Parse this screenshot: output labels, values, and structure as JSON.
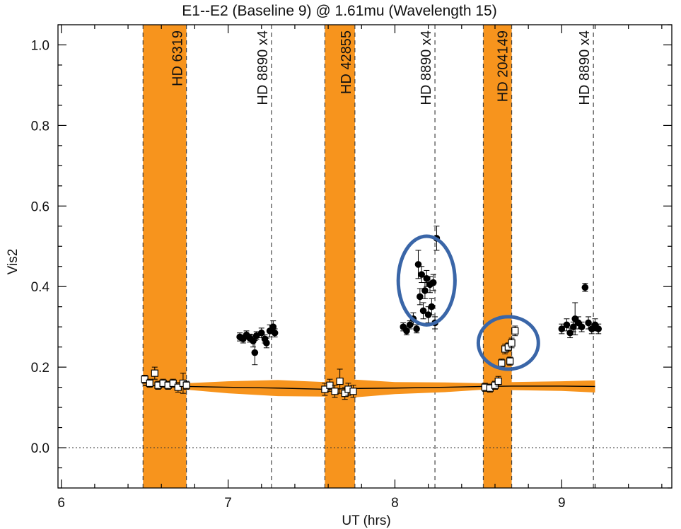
{
  "chart_data": {
    "type": "scatter",
    "title": "E1--E2 (Baseline 9) @ 1.61mu (Wavelength 15)",
    "xlabel": "UT (hrs)",
    "ylabel": "Vis2",
    "xlim": [
      5.98,
      9.66
    ],
    "ylim": [
      -0.1,
      1.05
    ],
    "x_ticks": [
      6,
      7,
      8,
      9
    ],
    "y_ticks": [
      0.0,
      0.2,
      0.4,
      0.6,
      0.8,
      1.0
    ],
    "x_tick_labels": [
      "6",
      "7",
      "8",
      "9"
    ],
    "y_tick_labels": [
      "0.0",
      "0.2",
      "0.4",
      "0.6",
      "0.8",
      "1.0"
    ],
    "zero_line": 0.0,
    "calibrator_bands": [
      {
        "start": 6.49,
        "end": 6.75,
        "color": "#F7941D",
        "label": "HD 6319"
      },
      {
        "start": 7.58,
        "end": 7.76,
        "color": "#F7941D",
        "label": "HD 42855"
      },
      {
        "start": 8.53,
        "end": 8.7,
        "color": "#F7941D",
        "label": "HD 204149"
      }
    ],
    "target_markers": [
      {
        "x": 7.26,
        "label": "HD 8890 x4"
      },
      {
        "x": 8.24,
        "label": "HD 8890 x4"
      },
      {
        "x": 9.19,
        "label": "HD 8890 x4"
      }
    ],
    "series": [
      {
        "marker": "filled-circle",
        "points": [
          {
            "x": 7.07,
            "y": 0.275,
            "err": 0.01
          },
          {
            "x": 7.09,
            "y": 0.27,
            "err": 0.01
          },
          {
            "x": 7.11,
            "y": 0.28,
            "err": 0.01
          },
          {
            "x": 7.13,
            "y": 0.272,
            "err": 0.01
          },
          {
            "x": 7.15,
            "y": 0.265,
            "err": 0.015
          },
          {
            "x": 7.17,
            "y": 0.278,
            "err": 0.01
          },
          {
            "x": 7.16,
            "y": 0.236,
            "err": 0.03
          },
          {
            "x": 7.2,
            "y": 0.285,
            "err": 0.012
          },
          {
            "x": 7.22,
            "y": 0.27,
            "err": 0.01
          },
          {
            "x": 7.23,
            "y": 0.26,
            "err": 0.012
          },
          {
            "x": 7.25,
            "y": 0.29,
            "err": 0.015
          },
          {
            "x": 7.27,
            "y": 0.3,
            "err": 0.015
          },
          {
            "x": 7.28,
            "y": 0.285,
            "err": 0.01
          },
          {
            "x": 8.05,
            "y": 0.3,
            "err": 0.01
          },
          {
            "x": 8.07,
            "y": 0.29,
            "err": 0.01
          },
          {
            "x": 8.09,
            "y": 0.305,
            "err": 0.01
          },
          {
            "x": 8.11,
            "y": 0.32,
            "err": 0.015
          },
          {
            "x": 8.13,
            "y": 0.295,
            "err": 0.01
          },
          {
            "x": 8.14,
            "y": 0.455,
            "err": 0.035
          },
          {
            "x": 8.15,
            "y": 0.375,
            "err": 0.02
          },
          {
            "x": 8.16,
            "y": 0.43,
            "err": 0.02
          },
          {
            "x": 8.17,
            "y": 0.34,
            "err": 0.02
          },
          {
            "x": 8.18,
            "y": 0.39,
            "err": 0.02
          },
          {
            "x": 8.19,
            "y": 0.42,
            "err": 0.02
          },
          {
            "x": 8.2,
            "y": 0.33,
            "err": 0.02
          },
          {
            "x": 8.21,
            "y": 0.405,
            "err": 0.02
          },
          {
            "x": 8.22,
            "y": 0.35,
            "err": 0.02
          },
          {
            "x": 8.23,
            "y": 0.41,
            "err": 0.02
          },
          {
            "x": 8.24,
            "y": 0.31,
            "err": 0.015
          },
          {
            "x": 8.25,
            "y": 0.52,
            "err": 0.03
          },
          {
            "x": 9.0,
            "y": 0.295,
            "err": 0.012
          },
          {
            "x": 9.03,
            "y": 0.305,
            "err": 0.015
          },
          {
            "x": 9.05,
            "y": 0.285,
            "err": 0.012
          },
          {
            "x": 9.07,
            "y": 0.3,
            "err": 0.012
          },
          {
            "x": 9.08,
            "y": 0.32,
            "err": 0.04
          },
          {
            "x": 9.1,
            "y": 0.31,
            "err": 0.015
          },
          {
            "x": 9.12,
            "y": 0.3,
            "err": 0.012
          },
          {
            "x": 9.14,
            "y": 0.398,
            "err": 0.01
          },
          {
            "x": 9.16,
            "y": 0.31,
            "err": 0.015
          },
          {
            "x": 9.18,
            "y": 0.295,
            "err": 0.012
          },
          {
            "x": 9.2,
            "y": 0.305,
            "err": 0.015
          },
          {
            "x": 9.22,
            "y": 0.295,
            "err": 0.012
          }
        ]
      },
      {
        "marker": "open-square",
        "points": [
          {
            "x": 6.5,
            "y": 0.17,
            "err": 0.01
          },
          {
            "x": 6.53,
            "y": 0.16,
            "err": 0.01
          },
          {
            "x": 6.56,
            "y": 0.185,
            "err": 0.015
          },
          {
            "x": 6.58,
            "y": 0.155,
            "err": 0.01
          },
          {
            "x": 6.61,
            "y": 0.16,
            "err": 0.01
          },
          {
            "x": 6.64,
            "y": 0.155,
            "err": 0.01
          },
          {
            "x": 6.67,
            "y": 0.16,
            "err": 0.01
          },
          {
            "x": 6.7,
            "y": 0.15,
            "err": 0.012
          },
          {
            "x": 6.73,
            "y": 0.16,
            "err": 0.025
          },
          {
            "x": 6.75,
            "y": 0.155,
            "err": 0.01
          },
          {
            "x": 7.58,
            "y": 0.145,
            "err": 0.015
          },
          {
            "x": 7.61,
            "y": 0.155,
            "err": 0.015
          },
          {
            "x": 7.64,
            "y": 0.14,
            "err": 0.015
          },
          {
            "x": 7.67,
            "y": 0.165,
            "err": 0.03
          },
          {
            "x": 7.7,
            "y": 0.135,
            "err": 0.015
          },
          {
            "x": 7.72,
            "y": 0.145,
            "err": 0.015
          },
          {
            "x": 7.75,
            "y": 0.14,
            "err": 0.015
          },
          {
            "x": 8.54,
            "y": 0.15,
            "err": 0.01
          },
          {
            "x": 8.57,
            "y": 0.148,
            "err": 0.01
          },
          {
            "x": 8.6,
            "y": 0.155,
            "err": 0.01
          },
          {
            "x": 8.62,
            "y": 0.165,
            "err": 0.012
          },
          {
            "x": 8.64,
            "y": 0.21,
            "err": 0.01
          },
          {
            "x": 8.66,
            "y": 0.245,
            "err": 0.012
          },
          {
            "x": 8.68,
            "y": 0.25,
            "err": 0.01
          },
          {
            "x": 8.69,
            "y": 0.215,
            "err": 0.01
          },
          {
            "x": 8.7,
            "y": 0.26,
            "err": 0.012
          },
          {
            "x": 8.72,
            "y": 0.29,
            "err": 0.012
          }
        ]
      }
    ],
    "calibration_curve": {
      "x": [
        6.49,
        6.75,
        7.0,
        7.3,
        7.58,
        7.76,
        8.0,
        8.3,
        8.53,
        8.7,
        9.0,
        9.2
      ],
      "y": [
        0.155,
        0.152,
        0.15,
        0.148,
        0.145,
        0.147,
        0.148,
        0.15,
        0.152,
        0.153,
        0.153,
        0.152
      ],
      "err": [
        0.01,
        0.008,
        0.015,
        0.02,
        0.018,
        0.022,
        0.015,
        0.012,
        0.008,
        0.01,
        0.012,
        0.015
      ]
    },
    "highlights": [
      {
        "cx": 8.19,
        "cy": 0.415,
        "rx": 0.17,
        "ry": 0.11,
        "color": "#3A66A8"
      },
      {
        "cx": 8.68,
        "cy": 0.26,
        "rx": 0.18,
        "ry": 0.065,
        "color": "#3A66A8"
      }
    ]
  }
}
